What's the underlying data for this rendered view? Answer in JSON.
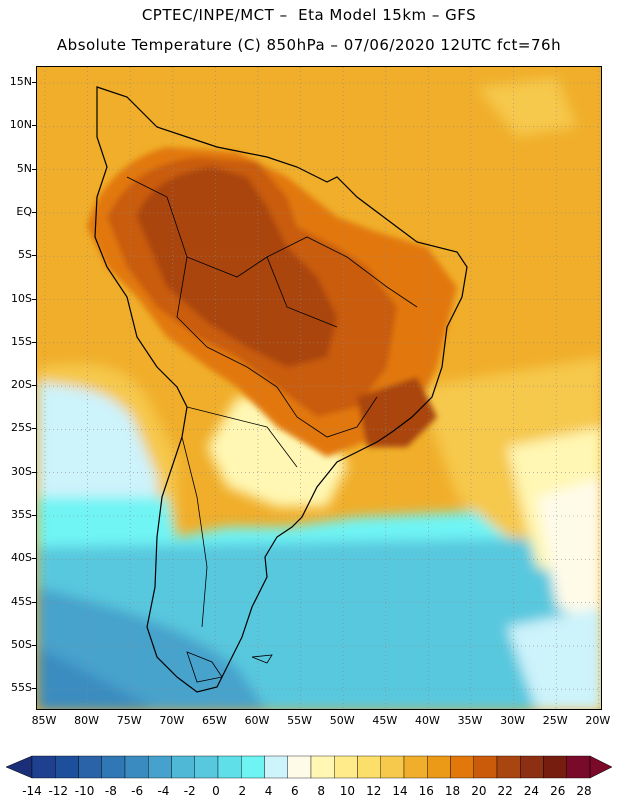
{
  "header": {
    "line1": "CPTEC/INPE/MCT –  Eta Model 15km – GFS",
    "line2": "Absolute Temperature (C) 850hPa – 07/06/2020 12UTC fct=76h"
  },
  "map": {
    "lat_labels": [
      "15N",
      "10N",
      "5N",
      "EQ",
      "5S",
      "10S",
      "15S",
      "20S",
      "25S",
      "30S",
      "35S",
      "40S",
      "45S",
      "50S",
      "55S"
    ],
    "lon_labels": [
      "85W",
      "80W",
      "75W",
      "70W",
      "65W",
      "60W",
      "55W",
      "50W",
      "45W",
      "40W",
      "35W",
      "30W",
      "25W",
      "20W"
    ],
    "gridlines": true
  },
  "colorbar": {
    "levels": [
      "-14",
      "-12",
      "-10",
      "-8",
      "-6",
      "-4",
      "-2",
      "0",
      "2",
      "4",
      "6",
      "8",
      "10",
      "12",
      "14",
      "16",
      "18",
      "20",
      "22",
      "24",
      "26",
      "28"
    ],
    "colors": [
      "#1f3f8f",
      "#1e4f9a",
      "#2a63a8",
      "#2f78b5",
      "#3a8cc0",
      "#46a2cc",
      "#4fb8d6",
      "#58c8de",
      "#5fe0e8",
      "#6ff4f4",
      "#cdf3fb",
      "#fffbe9",
      "#fff7b3",
      "#ffeb8a",
      "#fcde6a",
      "#f6c84b",
      "#f0ae2a",
      "#ea9a16",
      "#e2780c",
      "#c95b0a",
      "#a9450e",
      "#8d2f12",
      "#761d10",
      "#7a0a2a"
    ],
    "under_color": "#1a2f78",
    "over_color": "#7a0a2a"
  }
}
